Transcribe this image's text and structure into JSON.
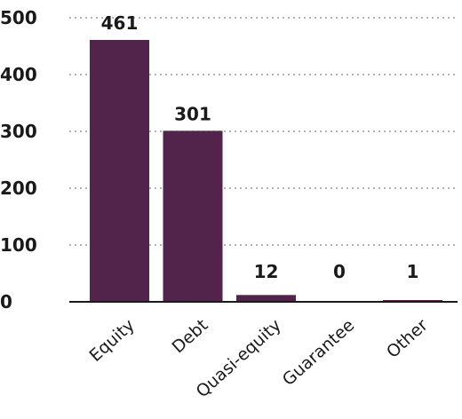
{
  "chart_data": {
    "type": "bar",
    "categories": [
      "Equity",
      "Debt",
      "Quasi-equity",
      "Guarantee",
      "Other"
    ],
    "values": [
      461,
      301,
      12,
      0,
      1
    ],
    "value_labels": [
      "461",
      "301",
      "12",
      "0",
      "1"
    ],
    "title": "",
    "xlabel": "",
    "ylabel": "",
    "ylim": [
      0,
      500
    ],
    "yticks": [
      "0",
      "100",
      "200",
      "300",
      "400",
      "500"
    ],
    "grid": "horizontal dotted",
    "legend": "none",
    "colors": {
      "bar": "#52244c",
      "text": "#1a1a1a",
      "grid": "#9a9a9a"
    }
  }
}
